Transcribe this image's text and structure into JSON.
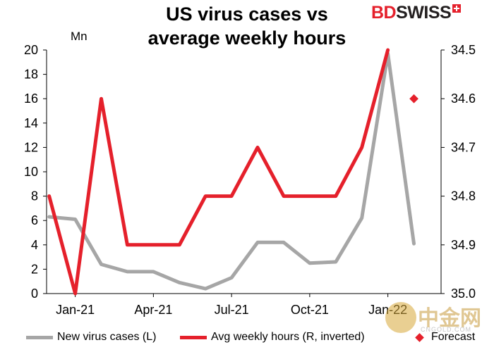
{
  "header": {
    "title_line1": "US virus cases vs",
    "title_line2": "average weekly hours",
    "logo_bd": "BD",
    "logo_swiss": "SWISS"
  },
  "unit_label": "Mn",
  "legend": {
    "cases": "New virus cases (L)",
    "hours": "Avg weekly hours (R, inverted)",
    "forecast": "Forecast"
  },
  "watermark": {
    "text": "中金网",
    "sub": "CNGOLD.COM"
  },
  "colors": {
    "cases": "#a6a6a6",
    "hours": "#e5202b",
    "forecast": "#e5202b"
  },
  "chart_data": {
    "type": "line",
    "title": "US virus cases vs average weekly hours",
    "x_tick_labels": [
      "Jan-21",
      "Apr-21",
      "Jul-21",
      "Oct-21",
      "Jan-22"
    ],
    "x": [
      "2020-12",
      "2021-01",
      "2021-02",
      "2021-03",
      "2021-04",
      "2021-05",
      "2021-06",
      "2021-07",
      "2021-08",
      "2021-09",
      "2021-10",
      "2021-11",
      "2021-12",
      "2022-01",
      "2022-02"
    ],
    "y_left": {
      "label": "Mn",
      "range": [
        0,
        20
      ],
      "ticks": [
        "0",
        "2",
        "4",
        "6",
        "8",
        "10",
        "12",
        "14",
        "16",
        "18",
        "20"
      ]
    },
    "y_right": {
      "range": [
        34.5,
        35.0
      ],
      "inverted": true,
      "ticks": [
        "34.5",
        "34.6",
        "34.7",
        "34.8",
        "34.9",
        "35.0"
      ]
    },
    "series": [
      {
        "name": "New virus cases (L)",
        "axis": "left",
        "x": [
          "2020-12",
          "2021-01",
          "2021-02",
          "2021-03",
          "2021-04",
          "2021-05",
          "2021-06",
          "2021-07",
          "2021-08",
          "2021-09",
          "2021-10",
          "2021-11",
          "2021-12",
          "2022-01",
          "2022-02"
        ],
        "values": [
          6.3,
          6.1,
          2.4,
          1.8,
          1.8,
          0.9,
          0.4,
          1.3,
          4.2,
          4.2,
          2.5,
          2.6,
          6.2,
          19.7,
          4.1
        ]
      },
      {
        "name": "Avg weekly hours (R, inverted)",
        "axis": "right",
        "x": [
          "2020-12",
          "2021-01",
          "2021-02",
          "2021-03",
          "2021-04",
          "2021-05",
          "2021-06",
          "2021-07",
          "2021-08",
          "2021-09",
          "2021-10",
          "2021-11",
          "2021-12",
          "2022-01"
        ],
        "values": [
          34.8,
          35.0,
          34.6,
          34.9,
          34.9,
          34.9,
          34.8,
          34.8,
          34.7,
          34.8,
          34.8,
          34.8,
          34.7,
          34.5
        ]
      }
    ],
    "forecast": {
      "name": "Forecast",
      "axis": "right",
      "x": "2022-02",
      "value": 34.6
    },
    "grid": false,
    "legend_position": "bottom"
  }
}
